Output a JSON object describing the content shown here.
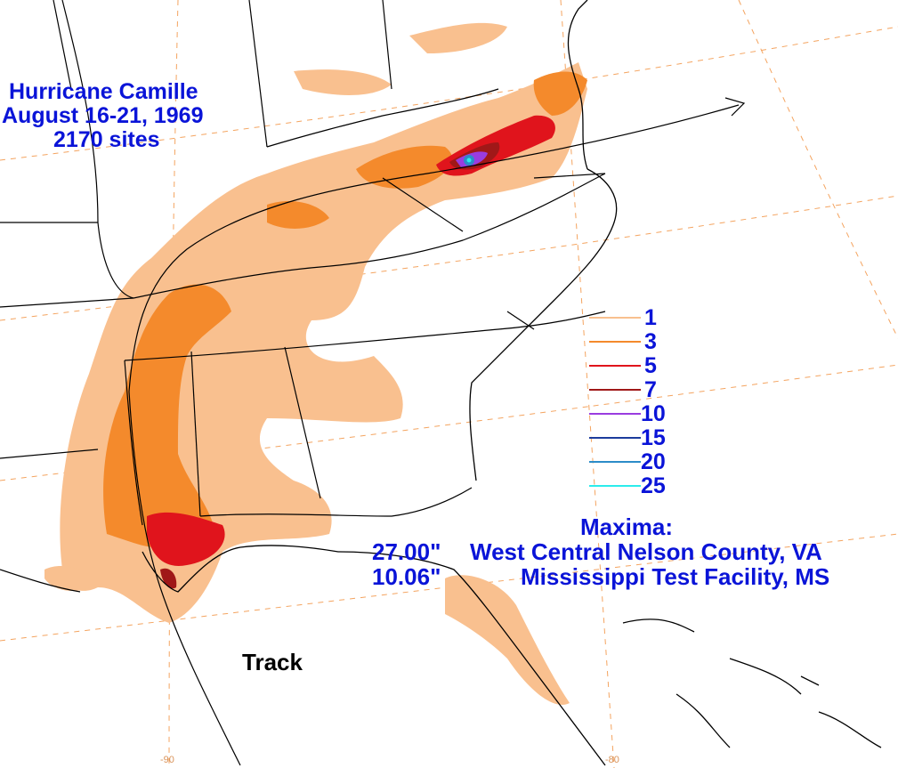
{
  "title": {
    "line1": "Hurricane Camille",
    "line2": "August 16-21, 1969",
    "line3": "2170 sites"
  },
  "legend": {
    "items": [
      {
        "label": "1",
        "color": "#f9c08f"
      },
      {
        "label": "3",
        "color": "#f48a2c"
      },
      {
        "label": "5",
        "color": "#e0141c"
      },
      {
        "label": "7",
        "color": "#a01818"
      },
      {
        "label": "10",
        "color": "#9a3ce0"
      },
      {
        "label": "15",
        "color": "#1c3c9c"
      },
      {
        "label": "20",
        "color": "#2c8cc8"
      },
      {
        "label": "25",
        "color": "#2cecec"
      }
    ]
  },
  "maxima": {
    "heading": "Maxima:",
    "entries": [
      {
        "value": "27.00\"",
        "location": "West Central Nelson County, VA"
      },
      {
        "value": "10.06\"",
        "location": "Mississippi Test Facility, MS"
      }
    ]
  },
  "track_label": "Track",
  "longitude_labels": [
    "-90",
    "-80"
  ],
  "colors": {
    "text": "#0a14d8",
    "graticule": "#f4a460",
    "boundary": "#000000"
  }
}
